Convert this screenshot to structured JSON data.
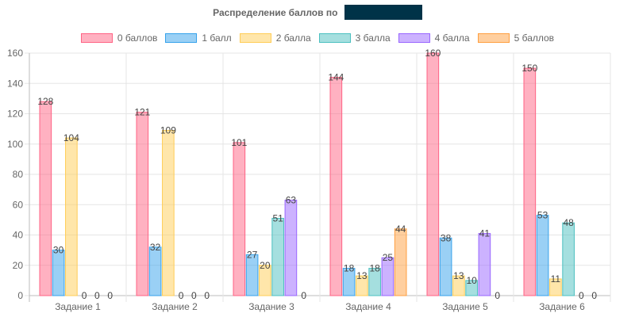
{
  "chart_data": {
    "type": "bar",
    "title": "Распределение баллов по",
    "categories": [
      "Задание 1",
      "Задание 2",
      "Задание 3",
      "Задание 4",
      "Задание 5",
      "Задание 6"
    ],
    "series": [
      {
        "name": "0 баллов",
        "color": "#ff6384",
        "values": [
          128,
          121,
          101,
          144,
          160,
          150
        ]
      },
      {
        "name": "1 балл",
        "color": "#36a2eb",
        "values": [
          30,
          32,
          27,
          18,
          38,
          53
        ]
      },
      {
        "name": "2 балла",
        "color": "#ffcd56",
        "values": [
          104,
          109,
          20,
          13,
          13,
          11
        ]
      },
      {
        "name": "3 балла",
        "color": "#4bc0c0",
        "values": [
          0,
          0,
          51,
          18,
          10,
          48
        ]
      },
      {
        "name": "4 балла",
        "color": "#9966ff",
        "values": [
          0,
          0,
          63,
          25,
          41,
          0
        ]
      },
      {
        "name": "5 баллов",
        "color": "#ff9f40",
        "values": [
          0,
          0,
          0,
          44,
          0,
          0
        ]
      }
    ],
    "ylim": [
      0,
      160
    ],
    "yticks": [
      "0",
      "20",
      "40",
      "60",
      "80",
      "100",
      "120",
      "140",
      "160"
    ],
    "grid": true,
    "legend_position": "top"
  }
}
